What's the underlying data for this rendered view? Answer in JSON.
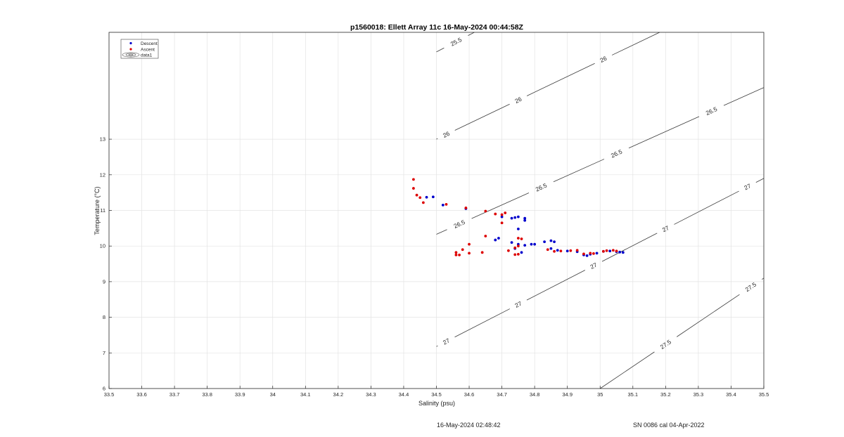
{
  "chart_data": {
    "type": "scatter",
    "title": "p1560018: Ellett Array 11c 16-May-2024 00:44:58Z",
    "xlabel": "Salinity (psu)",
    "ylabel": "Temperature (°C)",
    "xlim": [
      33.5,
      35.5
    ],
    "ylim": [
      6,
      16
    ],
    "grid": true,
    "legend_position": "top-left",
    "x_ticks": [
      "33.5",
      "33.6",
      "33.7",
      "33.8",
      "33.9",
      "34",
      "34.1",
      "34.2",
      "34.3",
      "34.4",
      "34.5",
      "34.6",
      "34.7",
      "34.8",
      "34.9",
      "35",
      "35.1",
      "35.2",
      "35.3",
      "35.4",
      "35.5"
    ],
    "y_ticks": [
      "6",
      "7",
      "8",
      "9",
      "10",
      "11",
      "12",
      "13"
    ],
    "legend": [
      {
        "name": "Descent",
        "color": "#0000cc"
      },
      {
        "name": "Ascent",
        "color": "#dd0000"
      },
      {
        "name": "data1",
        "color": "#555555"
      }
    ],
    "series": [
      {
        "name": "Descent",
        "color": "#0000cc",
        "points": [
          [
            34.47,
            11.37
          ],
          [
            34.49,
            11.38
          ],
          [
            34.52,
            11.15
          ],
          [
            34.59,
            11.05
          ],
          [
            34.68,
            10.17
          ],
          [
            34.69,
            10.22
          ],
          [
            34.7,
            10.82
          ],
          [
            34.73,
            10.78
          ],
          [
            34.74,
            10.8
          ],
          [
            34.75,
            10.82
          ],
          [
            34.77,
            10.78
          ],
          [
            34.77,
            10.72
          ],
          [
            34.75,
            10.48
          ],
          [
            34.73,
            10.1
          ],
          [
            34.75,
            10.05
          ],
          [
            34.77,
            10.02
          ],
          [
            34.79,
            10.05
          ],
          [
            34.8,
            10.05
          ],
          [
            34.74,
            9.93
          ],
          [
            34.76,
            9.82
          ],
          [
            34.83,
            10.12
          ],
          [
            34.85,
            10.15
          ],
          [
            34.86,
            10.12
          ],
          [
            34.85,
            9.93
          ],
          [
            34.87,
            9.88
          ],
          [
            34.9,
            9.86
          ],
          [
            34.93,
            9.84
          ],
          [
            34.95,
            9.75
          ],
          [
            34.96,
            9.73
          ],
          [
            34.97,
            9.77
          ],
          [
            34.99,
            9.8
          ],
          [
            35.01,
            9.85
          ],
          [
            35.03,
            9.86
          ],
          [
            35.05,
            9.84
          ],
          [
            35.06,
            9.83
          ],
          [
            35.07,
            9.82
          ]
        ]
      },
      {
        "name": "Ascent",
        "color": "#dd0000",
        "points": [
          [
            34.43,
            11.87
          ],
          [
            34.43,
            11.62
          ],
          [
            34.44,
            11.43
          ],
          [
            34.45,
            11.36
          ],
          [
            34.46,
            11.22
          ],
          [
            34.53,
            11.17
          ],
          [
            34.59,
            11.07
          ],
          [
            34.65,
            10.98
          ],
          [
            34.68,
            10.9
          ],
          [
            34.7,
            10.88
          ],
          [
            34.71,
            10.93
          ],
          [
            34.7,
            10.65
          ],
          [
            34.65,
            10.28
          ],
          [
            34.75,
            10.22
          ],
          [
            34.76,
            10.2
          ],
          [
            34.6,
            10.05
          ],
          [
            34.72,
            9.87
          ],
          [
            34.74,
            9.95
          ],
          [
            34.75,
            10.0
          ],
          [
            34.56,
            9.82
          ],
          [
            34.56,
            9.75
          ],
          [
            34.57,
            9.75
          ],
          [
            34.58,
            9.9
          ],
          [
            34.6,
            9.8
          ],
          [
            34.64,
            9.82
          ],
          [
            34.74,
            9.76
          ],
          [
            34.75,
            9.77
          ],
          [
            34.84,
            9.9
          ],
          [
            34.86,
            9.85
          ],
          [
            34.88,
            9.86
          ],
          [
            34.91,
            9.87
          ],
          [
            34.93,
            9.88
          ],
          [
            34.95,
            9.78
          ],
          [
            34.97,
            9.8
          ],
          [
            34.98,
            9.79
          ],
          [
            35.01,
            9.85
          ],
          [
            35.02,
            9.87
          ],
          [
            35.04,
            9.88
          ],
          [
            35.05,
            9.86
          ]
        ]
      }
    ],
    "contours": [
      {
        "label": "25.5",
        "line": [
          [
            34.5,
            15.45
          ],
          [
            35.5,
            20.2
          ]
        ],
        "labels_at": [
          34.56
        ]
      },
      {
        "label": "26",
        "line": [
          [
            34.5,
            13.0
          ],
          [
            35.5,
            17.4
          ]
        ],
        "labels_at": [
          34.53,
          34.75,
          35.01,
          35.35
        ]
      },
      {
        "label": "26.5",
        "line": [
          [
            34.5,
            10.33
          ],
          [
            35.5,
            14.45
          ]
        ],
        "labels_at": [
          34.57,
          34.82,
          35.05,
          35.34
        ]
      },
      {
        "label": "27",
        "line": [
          [
            34.5,
            7.18
          ],
          [
            35.5,
            11.9
          ]
        ],
        "labels_at": [
          34.53,
          34.75,
          34.98,
          35.2,
          35.45
        ]
      },
      {
        "label": "27.5",
        "line": [
          [
            34.5,
            2.9
          ],
          [
            35.5,
            9.1
          ]
        ],
        "labels_at": [
          34.93,
          35.2,
          35.46
        ]
      }
    ]
  },
  "footer": {
    "timestamp": "16-May-2024 02:48:42",
    "serial": "SN 0086 cal 04-Apr-2022"
  }
}
